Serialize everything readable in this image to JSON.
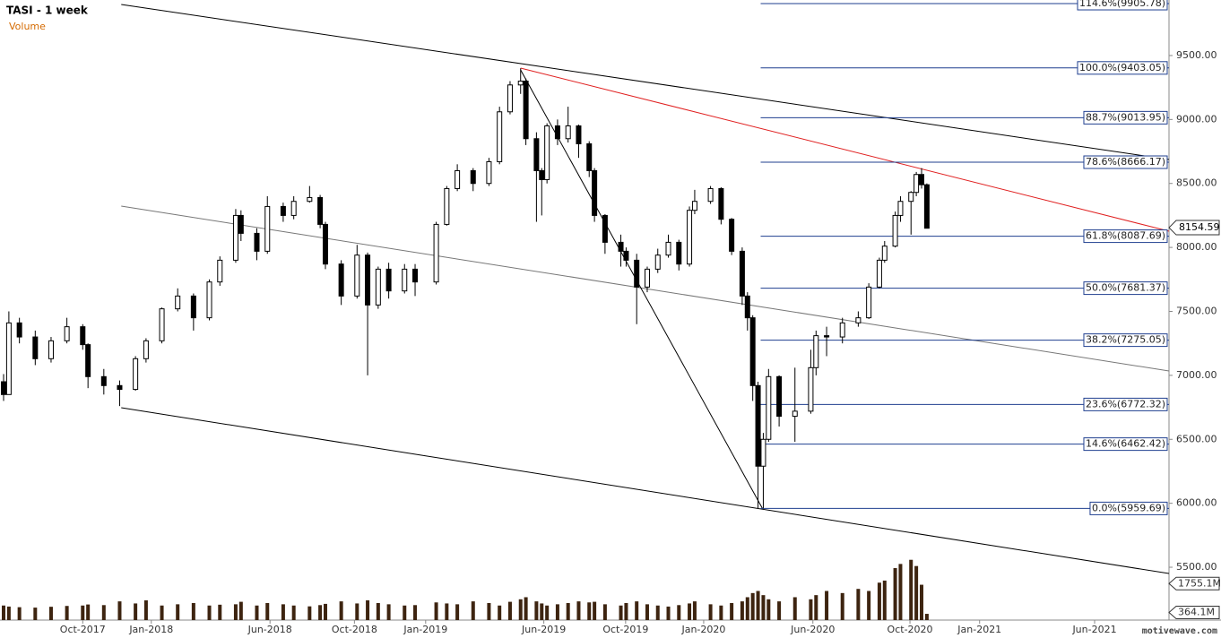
{
  "chart_data": {
    "type": "candlestick",
    "title": "TASI - 1 week",
    "volume_label": "Volume",
    "watermark": "motivewave.com",
    "x": [
      0,
      1,
      3,
      6,
      9,
      12,
      15,
      16,
      19,
      22,
      25,
      27,
      30,
      33,
      36,
      39,
      41,
      44,
      45,
      48,
      50,
      53,
      55,
      58,
      60,
      61,
      64,
      67,
      69,
      71,
      73,
      76,
      78,
      82,
      84,
      86,
      89,
      92,
      94,
      96,
      98,
      99,
      101,
      102,
      103,
      105,
      107,
      109,
      111,
      112,
      114,
      117,
      118,
      120,
      122,
      124,
      126,
      128,
      130,
      131,
      134,
      136,
      138,
      140,
      141,
      142,
      143,
      144,
      145,
      147,
      150,
      153,
      154,
      156,
      159,
      162,
      164,
      166,
      167,
      169,
      170,
      172,
      173,
      174,
      175
    ],
    "open": [
      6950,
      6850,
      7410,
      7300,
      7130,
      7270,
      7380,
      7240,
      6990,
      6920,
      6890,
      7130,
      7270,
      7520,
      7620,
      7450,
      7730,
      7900,
      8250,
      8110,
      7970,
      8320,
      8250,
      8360,
      8390,
      8180,
      7870,
      7620,
      7940,
      7550,
      7830,
      7660,
      7830,
      7730,
      8180,
      8460,
      8600,
      8500,
      8670,
      9060,
      9270,
      9300,
      8850,
      8600,
      8530,
      8950,
      8850,
      8950,
      8810,
      8600,
      8250,
      8040,
      7970,
      7900,
      7690,
      7830,
      7940,
      8040,
      7870,
      8290,
      8360,
      8460,
      8220,
      7970,
      7620,
      7450,
      6920,
      6290,
      6500,
      6990,
      6680,
      6720,
      7060,
      7310,
      7300,
      7410,
      7450,
      7690,
      7900,
      8010,
      8250,
      8360,
      8430,
      8570,
      8490
    ],
    "high": [
      7010,
      7500,
      7450,
      7350,
      7300,
      7450,
      7400,
      7250,
      7050,
      6960,
      7150,
      7290,
      7530,
      7680,
      7640,
      7750,
      7930,
      8300,
      8290,
      8150,
      8400,
      8350,
      8400,
      8480,
      8410,
      8200,
      7900,
      8020,
      7960,
      7850,
      7880,
      7870,
      7870,
      8200,
      8480,
      8650,
      8620,
      8700,
      9100,
      9300,
      9400,
      9320,
      8900,
      8620,
      8970,
      9000,
      9100,
      8960,
      8830,
      8620,
      8260,
      8100,
      8000,
      7950,
      7850,
      7990,
      8100,
      8060,
      8320,
      8450,
      8480,
      8470,
      8230,
      8000,
      7650,
      7470,
      6950,
      6550,
      7050,
      7000,
      7060,
      7200,
      7350,
      7380,
      7450,
      7500,
      7720,
      7920,
      8050,
      8280,
      8400,
      8440,
      8590,
      8620,
      8500
    ],
    "low": [
      6800,
      6850,
      7250,
      7080,
      7100,
      7250,
      7200,
      6900,
      6850,
      6760,
      6880,
      7100,
      7250,
      7500,
      7350,
      7430,
      7700,
      7880,
      8050,
      7900,
      7950,
      8200,
      8220,
      8350,
      8150,
      7830,
      7550,
      7600,
      7000,
      7520,
      7600,
      7640,
      7620,
      7710,
      8170,
      8440,
      8440,
      8480,
      8650,
      9040,
      9200,
      8800,
      8200,
      8250,
      8500,
      8800,
      8820,
      8700,
      8550,
      8200,
      7950,
      7850,
      7850,
      7400,
      7650,
      7800,
      7920,
      7820,
      7850,
      8260,
      8340,
      8180,
      7940,
      7550,
      7350,
      6800,
      5960,
      5960,
      6480,
      6600,
      6480,
      6700,
      7000,
      7150,
      7250,
      7380,
      7440,
      7680,
      7880,
      8000,
      8200,
      8100,
      8400,
      8460,
      8150
    ],
    "close": [
      6850,
      7410,
      7300,
      7130,
      7270,
      7380,
      7240,
      6990,
      6920,
      6890,
      7130,
      7270,
      7520,
      7620,
      7450,
      7730,
      7900,
      8250,
      8110,
      7970,
      8320,
      8250,
      8360,
      8390,
      8180,
      7870,
      7620,
      7940,
      7550,
      7830,
      7660,
      7830,
      7730,
      8180,
      8460,
      8600,
      8500,
      8670,
      9060,
      9270,
      9300,
      8850,
      8600,
      8530,
      8950,
      8850,
      8950,
      8810,
      8600,
      8250,
      8040,
      7970,
      7900,
      7690,
      7830,
      7940,
      8040,
      7870,
      8290,
      8360,
      8460,
      8220,
      7970,
      7620,
      7450,
      6920,
      6290,
      6500,
      6990,
      6680,
      6720,
      7060,
      7310,
      7300,
      7410,
      7450,
      7690,
      7900,
      8010,
      8250,
      8360,
      8430,
      8570,
      8490,
      8150
    ],
    "volume": [
      700,
      650,
      620,
      600,
      640,
      680,
      700,
      750,
      720,
      900,
      800,
      950,
      700,
      760,
      820,
      700,
      740,
      760,
      880,
      700,
      820,
      760,
      700,
      660,
      720,
      780,
      900,
      800,
      950,
      820,
      760,
      700,
      720,
      850,
      800,
      760,
      900,
      820,
      700,
      880,
      1000,
      1100,
      900,
      800,
      700,
      760,
      820,
      900,
      850,
      880,
      760,
      700,
      820,
      900,
      760,
      700,
      650,
      720,
      800,
      900,
      760,
      700,
      820,
      900,
      1100,
      1300,
      1400,
      1200,
      1000,
      900,
      1100,
      1000,
      1200,
      1400,
      1300,
      1500,
      1400,
      1800,
      1900,
      2500,
      2700,
      2900,
      2600,
      1700,
      300
    ],
    "xlim": [
      -0.68,
      220.9
    ],
    "xticks": [
      {
        "value": 15,
        "label": "Oct-2017"
      },
      {
        "value": 28,
        "label": "Jan-2018"
      },
      {
        "value": 50.5,
        "label": "Jun-2018"
      },
      {
        "value": 66.5,
        "label": "Oct-2018"
      },
      {
        "value": 80,
        "label": "Jan-2019"
      },
      {
        "value": 102.4,
        "label": "Jun-2019"
      },
      {
        "value": 117.9,
        "label": "Oct-2019"
      },
      {
        "value": 132.7,
        "label": "Jan-2020"
      },
      {
        "value": 153.4,
        "label": "Jun-2020"
      },
      {
        "value": 171.8,
        "label": "Oct-2020"
      },
      {
        "value": 185,
        "label": "Jan-2021"
      },
      {
        "value": 206.8,
        "label": "Jun-2021"
      }
    ],
    "ylim": [
      5101,
      9934
    ],
    "yticks": [
      {
        "value": 5500,
        "label": "5500.00"
      },
      {
        "value": 6000,
        "label": "6000.00"
      },
      {
        "value": 6500,
        "label": "6500.00"
      },
      {
        "value": 7000,
        "label": "7000.00"
      },
      {
        "value": 7500,
        "label": "7500.00"
      },
      {
        "value": 8000,
        "label": "8000.00"
      },
      {
        "value": 8500,
        "label": "8500.00"
      },
      {
        "value": 9000,
        "label": "9000.00"
      },
      {
        "value": 9500,
        "label": "9500.00"
      }
    ],
    "y2lim": [
      0,
      2500
    ],
    "y2ticks": [
      {
        "value": 1755.1,
        "label": "1755.1M"
      },
      {
        "value": 364.1,
        "label": "364.1M"
      }
    ],
    "last_price": {
      "value": 8154.59,
      "label": "8154.59"
    },
    "fib_start": 143.5,
    "fib_levels": [
      {
        "value": 9905.78,
        "label": "114.6%(9905.78)"
      },
      {
        "value": 9403.05,
        "label": "100.0%(9403.05)"
      },
      {
        "value": 9013.95,
        "label": "88.7%(9013.95)"
      },
      {
        "value": 8666.17,
        "label": "78.6%(8666.17)"
      },
      {
        "value": 8087.69,
        "label": "61.8%(8087.69)"
      },
      {
        "value": 7681.37,
        "label": "50.0%(7681.37)"
      },
      {
        "value": 7275.05,
        "label": "38.2%(7275.05)"
      },
      {
        "value": 6772.32,
        "label": "23.6%(6772.32)"
      },
      {
        "value": 6462.42,
        "label": "14.6%(6462.42)"
      },
      {
        "value": 5959.69,
        "label": "0.0%(5959.69)"
      }
    ],
    "trendlines": [
      {
        "x": [
          22.3,
          220.9
        ],
        "y": [
          9899,
          8687
        ],
        "color": "#000000"
      },
      {
        "x": [
          22.3,
          220.9
        ],
        "y": [
          8323,
          7034
        ],
        "color": "#777777"
      },
      {
        "x": [
          22.3,
          220.9
        ],
        "y": [
          6747,
          5451
        ],
        "color": "#000000"
      },
      {
        "x": [
          98,
          220.9
        ],
        "y": [
          9402,
          8127
        ],
        "color": "#e02020"
      },
      {
        "x": [
          98,
          143.9
        ],
        "y": [
          9388,
          5955
        ],
        "color": "#000000"
      }
    ],
    "up_color": "#ffffff",
    "down_color": "#000000",
    "fib_color": "#1f3f8f",
    "volume_color": "#3d2410"
  }
}
